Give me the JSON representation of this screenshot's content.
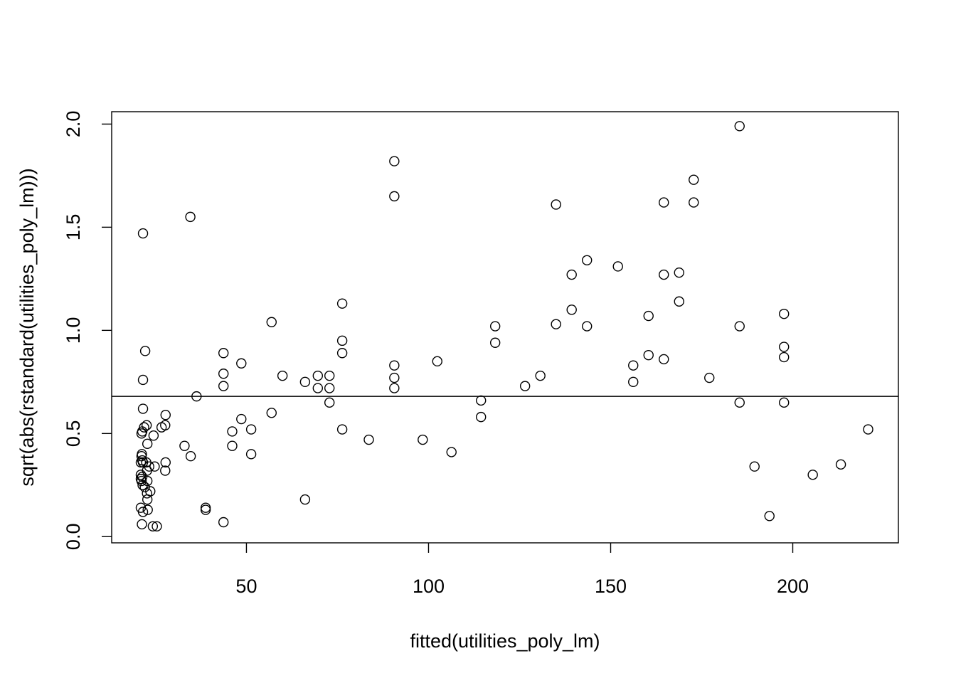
{
  "chart_data": {
    "type": "scatter",
    "xlabel": "fitted(utilities_poly_lm)",
    "ylabel": "sqrt(abs(rstandard(utilities_poly_lm)))",
    "xlim": [
      13,
      229
    ],
    "ylim": [
      -0.03,
      2.06
    ],
    "x_ticks": [
      50,
      100,
      150,
      200
    ],
    "x_tick_labels": [
      "50",
      "100",
      "150",
      "200"
    ],
    "y_ticks": [
      0.0,
      0.5,
      1.0,
      1.5,
      2.0
    ],
    "y_tick_labels": [
      "0.0",
      "0.5",
      "1.0",
      "1.5",
      "2.0"
    ],
    "grid": false,
    "hline": {
      "y": 0.68
    },
    "points": [
      [
        21.6,
        1.47
      ],
      [
        21.6,
        0.76
      ],
      [
        22.2,
        0.9
      ],
      [
        21.6,
        0.62
      ],
      [
        22.6,
        0.54
      ],
      [
        21.9,
        0.53
      ],
      [
        21.4,
        0.51
      ],
      [
        21.2,
        0.5
      ],
      [
        24.5,
        0.49
      ],
      [
        22.8,
        0.45
      ],
      [
        21.3,
        0.4
      ],
      [
        21.2,
        0.39
      ],
      [
        21.4,
        0.37
      ],
      [
        21.0,
        0.36
      ],
      [
        21.6,
        0.36
      ],
      [
        22.5,
        0.36
      ],
      [
        23.3,
        0.34
      ],
      [
        24.8,
        0.34
      ],
      [
        22.7,
        0.32
      ],
      [
        21.0,
        0.3
      ],
      [
        21.4,
        0.29
      ],
      [
        21.0,
        0.28
      ],
      [
        21.2,
        0.27
      ],
      [
        22.8,
        0.27
      ],
      [
        21.5,
        0.25
      ],
      [
        22.1,
        0.24
      ],
      [
        23.6,
        0.22
      ],
      [
        22.7,
        0.21
      ],
      [
        22.8,
        0.18
      ],
      [
        21.0,
        0.14
      ],
      [
        22.9,
        0.13
      ],
      [
        21.6,
        0.12
      ],
      [
        21.3,
        0.06
      ],
      [
        24.3,
        0.05
      ],
      [
        25.4,
        0.05
      ],
      [
        26.7,
        0.53
      ],
      [
        27.8,
        0.59
      ],
      [
        27.7,
        0.54
      ],
      [
        27.8,
        0.36
      ],
      [
        27.7,
        0.32
      ],
      [
        33.0,
        0.44
      ],
      [
        34.6,
        1.55
      ],
      [
        34.7,
        0.39
      ],
      [
        36.3,
        0.68
      ],
      [
        38.8,
        0.14
      ],
      [
        38.8,
        0.13
      ],
      [
        43.7,
        0.89
      ],
      [
        43.7,
        0.79
      ],
      [
        43.7,
        0.73
      ],
      [
        43.7,
        0.07
      ],
      [
        46.1,
        0.51
      ],
      [
        46.1,
        0.44
      ],
      [
        48.6,
        0.84
      ],
      [
        48.6,
        0.57
      ],
      [
        51.3,
        0.52
      ],
      [
        51.3,
        0.4
      ],
      [
        56.9,
        1.04
      ],
      [
        56.9,
        0.6
      ],
      [
        59.9,
        0.78
      ],
      [
        66.1,
        0.75
      ],
      [
        66.1,
        0.18
      ],
      [
        69.6,
        0.78
      ],
      [
        69.6,
        0.72
      ],
      [
        72.8,
        0.78
      ],
      [
        72.8,
        0.72
      ],
      [
        72.8,
        0.65
      ],
      [
        76.3,
        1.13
      ],
      [
        76.3,
        0.95
      ],
      [
        76.3,
        0.89
      ],
      [
        76.3,
        0.52
      ],
      [
        83.6,
        0.47
      ],
      [
        90.6,
        1.82
      ],
      [
        90.6,
        1.65
      ],
      [
        90.6,
        0.83
      ],
      [
        90.6,
        0.77
      ],
      [
        90.6,
        0.72
      ],
      [
        98.4,
        0.47
      ],
      [
        102.4,
        0.85
      ],
      [
        106.3,
        0.41
      ],
      [
        114.4,
        0.66
      ],
      [
        114.4,
        0.58
      ],
      [
        118.3,
        1.02
      ],
      [
        118.3,
        0.94
      ],
      [
        126.5,
        0.73
      ],
      [
        130.7,
        0.78
      ],
      [
        135.0,
        1.03
      ],
      [
        135.0,
        1.61
      ],
      [
        139.3,
        1.27
      ],
      [
        139.3,
        1.1
      ],
      [
        143.5,
        1.34
      ],
      [
        143.5,
        1.02
      ],
      [
        152.0,
        1.31
      ],
      [
        156.2,
        0.83
      ],
      [
        156.2,
        0.75
      ],
      [
        160.4,
        1.07
      ],
      [
        160.4,
        0.88
      ],
      [
        164.6,
        1.62
      ],
      [
        164.6,
        1.27
      ],
      [
        164.6,
        0.86
      ],
      [
        168.8,
        1.28
      ],
      [
        168.8,
        1.14
      ],
      [
        172.8,
        1.73
      ],
      [
        172.8,
        1.62
      ],
      [
        177.1,
        0.77
      ],
      [
        185.4,
        1.99
      ],
      [
        185.4,
        1.02
      ],
      [
        185.4,
        0.65
      ],
      [
        189.5,
        0.34
      ],
      [
        193.6,
        0.1
      ],
      [
        197.6,
        1.08
      ],
      [
        197.6,
        0.92
      ],
      [
        197.6,
        0.87
      ],
      [
        197.6,
        0.65
      ],
      [
        205.5,
        0.3
      ],
      [
        213.2,
        0.35
      ],
      [
        220.7,
        0.52
      ]
    ]
  }
}
